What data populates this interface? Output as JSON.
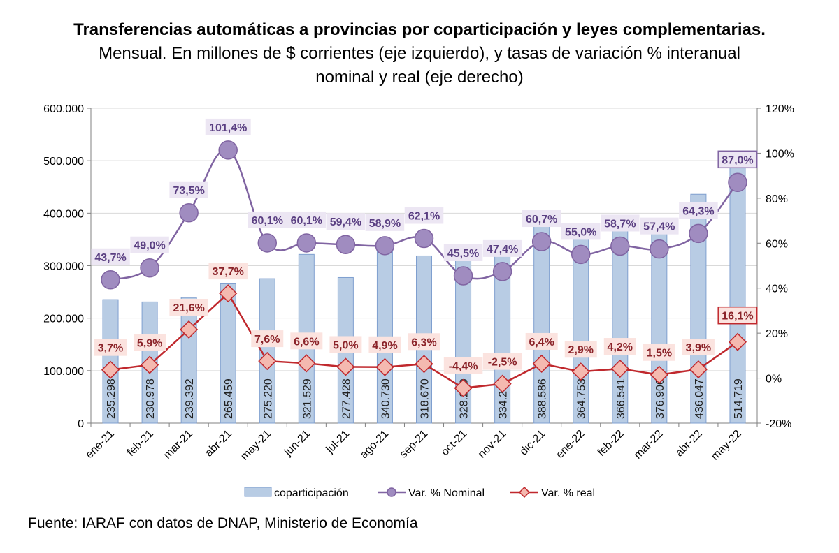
{
  "title": "Transferencias automáticas a provincias por coparticipación y leyes complementarias.",
  "subtitle_line1": "Mensual. En millones de $ corrientes (eje izquierdo), y tasas de variación % interanual",
  "subtitle_line2": "nominal y real (eje derecho)",
  "source": "Fuente: IARAF con datos de DNAP, Ministerio de Economía",
  "colors": {
    "bar_fill": "#b8cce4",
    "bar_stroke": "#7f9fcf",
    "nominal_line": "#8064a2",
    "nominal_marker": "#a08cc0",
    "nominal_label_bg": "#ece6f3",
    "nominal_label_text": "#5a3f82",
    "real_line": "#c0282d",
    "real_marker": "#f4b9b0",
    "real_label_bg": "#fbe3df",
    "real_label_text": "#8b2329",
    "grid": "#d9d9d9",
    "axis": "#808080"
  },
  "chart_data": {
    "type": "bar",
    "categories": [
      "ene-21",
      "feb-21",
      "mar-21",
      "abr-21",
      "may-21",
      "jun-21",
      "jul-21",
      "ago-21",
      "sep-21",
      "oct-21",
      "nov-21",
      "dic-21",
      "ene-22",
      "feb-22",
      "mar-22",
      "abr-22",
      "may-22"
    ],
    "left_axis": {
      "ylim": [
        0,
        600000
      ],
      "ticks": [
        0,
        100000,
        200000,
        300000,
        400000,
        500000,
        600000
      ],
      "tick_labels": [
        "0",
        "100.000",
        "200.000",
        "300.000",
        "400.000",
        "500.000",
        "600.000"
      ]
    },
    "right_axis": {
      "ylim": [
        -20,
        120
      ],
      "ticks": [
        -20,
        0,
        20,
        40,
        60,
        80,
        100,
        120
      ],
      "tick_labels": [
        "-20%",
        "0%",
        "20%",
        "40%",
        "60%",
        "80%",
        "100%",
        "120%"
      ]
    },
    "series": [
      {
        "name": "coparticipación",
        "kind": "bar",
        "axis": "left",
        "values": [
          235298,
          230978,
          239392,
          265459,
          275220,
          321529,
          277428,
          340730,
          318670,
          328209,
          334241,
          388586,
          364753,
          366541,
          376906,
          436047,
          514719
        ],
        "labels": [
          "235.298",
          "230.978",
          "239.392",
          "265.459",
          "275.220",
          "321.529",
          "277.428",
          "340.730",
          "318.670",
          "328.209",
          "334.241",
          "388.586",
          "364.753",
          "366.541",
          "376.906",
          "436.047",
          "514.719"
        ]
      },
      {
        "name": "Var. % Nominal",
        "kind": "line",
        "axis": "right",
        "values": [
          43.7,
          49.0,
          73.5,
          101.4,
          60.1,
          60.1,
          59.4,
          58.9,
          62.1,
          45.5,
          47.4,
          60.7,
          55.0,
          58.7,
          57.4,
          64.3,
          87.0
        ],
        "labels": [
          "43,7%",
          "49,0%",
          "73,5%",
          "101,4%",
          "60,1%",
          "60,1%",
          "59,4%",
          "58,9%",
          "62,1%",
          "45,5%",
          "47,4%",
          "60,7%",
          "55,0%",
          "58,7%",
          "57,4%",
          "64,3%",
          "87,0%"
        ]
      },
      {
        "name": "Var. % real",
        "kind": "line",
        "axis": "right",
        "values": [
          3.7,
          5.9,
          21.6,
          37.7,
          7.6,
          6.6,
          5.0,
          4.9,
          6.3,
          -4.4,
          -2.5,
          6.4,
          2.9,
          4.2,
          1.5,
          3.9,
          16.1
        ],
        "labels": [
          "3,7%",
          "5,9%",
          "21,6%",
          "37,7%",
          "7,6%",
          "6,6%",
          "5,0%",
          "4,9%",
          "6,3%",
          "-4,4%",
          "-2,5%",
          "6,4%",
          "2,9%",
          "4,2%",
          "1,5%",
          "3,9%",
          "16,1%"
        ]
      }
    ],
    "grid": true,
    "legend_position": "bottom"
  }
}
